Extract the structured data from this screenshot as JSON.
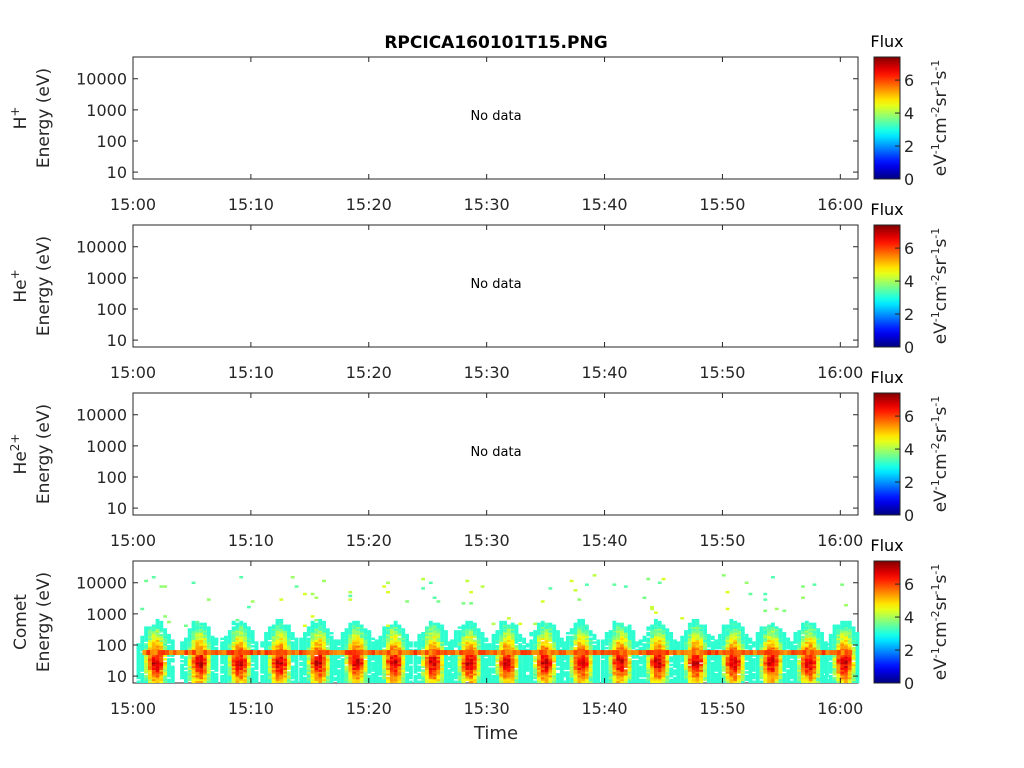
{
  "chart_data": {
    "type": "heatmap",
    "title": "RPCICA160101T15.PNG",
    "xlabel": "Time",
    "x_ticks": [
      "15:00",
      "15:10",
      "15:20",
      "15:30",
      "15:40",
      "15:50",
      "16:00"
    ],
    "xlim_minutes": [
      0,
      61.5
    ],
    "ylabel_unit": "Energy (eV)",
    "y_scale": "log",
    "ylim": [
      6,
      50000
    ],
    "y_ticks": [
      10,
      100,
      1000,
      10000
    ],
    "colorbar": {
      "title": "Flux",
      "label": "eV-1cm-2sr-1s-1",
      "range": [
        0,
        7.4
      ],
      "ticks": [
        0,
        2,
        4,
        6
      ],
      "colormap": "jet"
    },
    "panels": [
      {
        "species": "H",
        "superscript": "+",
        "note": "No data"
      },
      {
        "species": "He",
        "superscript": "+",
        "note": "No data"
      },
      {
        "species": "He",
        "superscript": "2+",
        "note": "No data"
      },
      {
        "species": "Comet",
        "superscript": "",
        "note": "",
        "burst_centers_minutes": [
          1.8,
          5.5,
          8.9,
          12.3,
          15.6,
          18.8,
          22.0,
          25.3,
          28.4,
          31.6,
          34.8,
          37.9,
          41.2,
          44.4,
          47.6,
          50.8,
          54.0,
          57.2,
          60.2
        ],
        "burst_peak_energy_eV": 25,
        "burst_top_energy_eV": 300,
        "max_flux": 7,
        "persistent_band_eV": 55
      }
    ]
  }
}
